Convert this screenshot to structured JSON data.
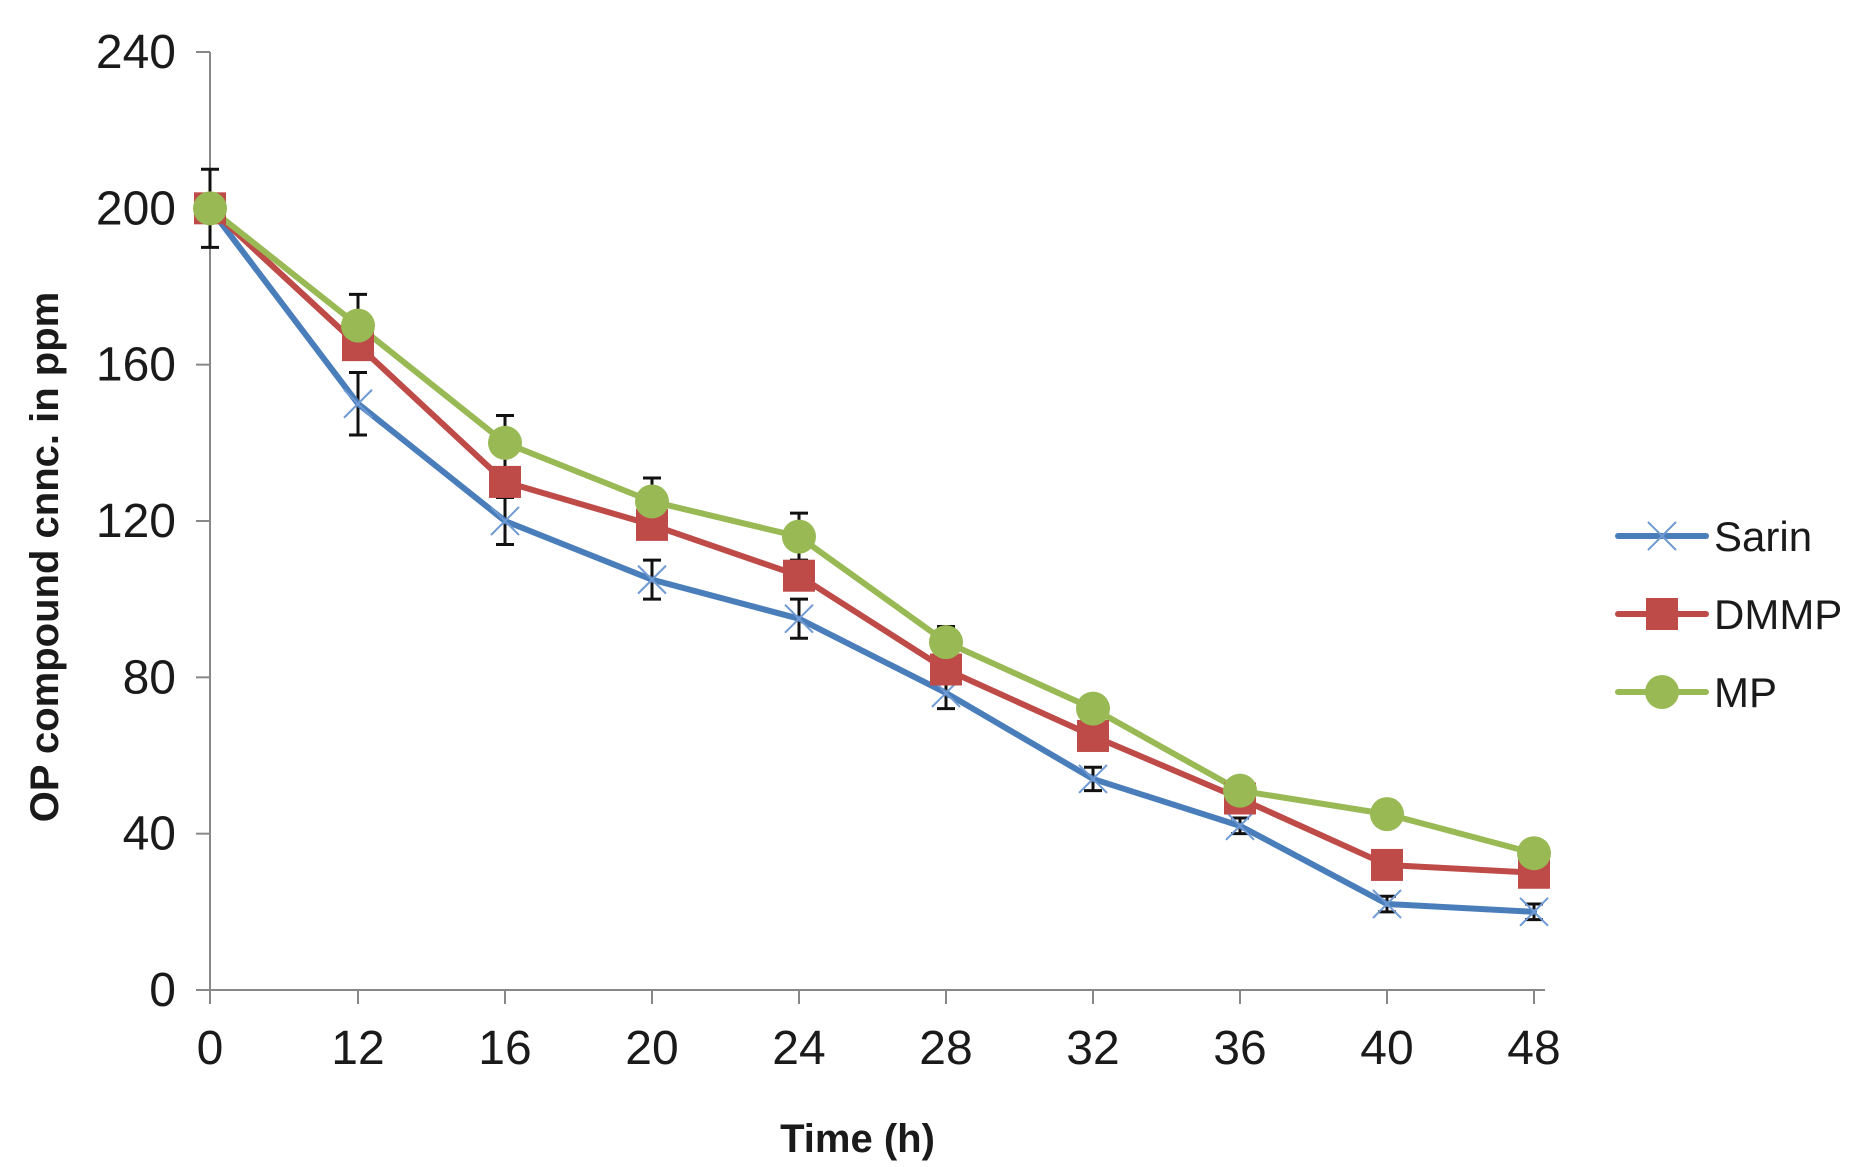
{
  "chart_data": {
    "type": "line",
    "title": "",
    "xlabel": "Time (h)",
    "ylabel": "OP compound cnnc. in ppm",
    "categories": [
      "0",
      "12",
      "16",
      "20",
      "24",
      "28",
      "32",
      "36",
      "40",
      "48"
    ],
    "ylim": [
      0,
      240
    ],
    "yticks": [
      "0",
      "40",
      "80",
      "120",
      "160",
      "200",
      "240"
    ],
    "grid": false,
    "legend_position": "right",
    "series": [
      {
        "name": "Sarin",
        "marker": "x",
        "color": "#4a7ebb",
        "values": [
          200,
          150,
          120,
          105,
          95,
          76,
          54,
          42,
          22,
          20
        ],
        "errors": [
          10,
          8,
          6,
          5,
          5,
          4,
          3,
          2,
          2,
          2
        ]
      },
      {
        "name": "DMMP",
        "marker": "square",
        "color": "#be4b48",
        "values": [
          200,
          165,
          130,
          119,
          106,
          82,
          65,
          49,
          32,
          30
        ],
        "errors": [
          0,
          0,
          0,
          0,
          0,
          0,
          0,
          0,
          0,
          0
        ]
      },
      {
        "name": "MP",
        "marker": "circle",
        "color": "#98b954",
        "values": [
          200,
          170,
          140,
          125,
          116,
          89,
          72,
          51,
          45,
          35
        ],
        "errors": [
          0,
          8,
          7,
          6,
          6,
          4,
          3,
          2,
          0,
          0
        ]
      }
    ]
  }
}
